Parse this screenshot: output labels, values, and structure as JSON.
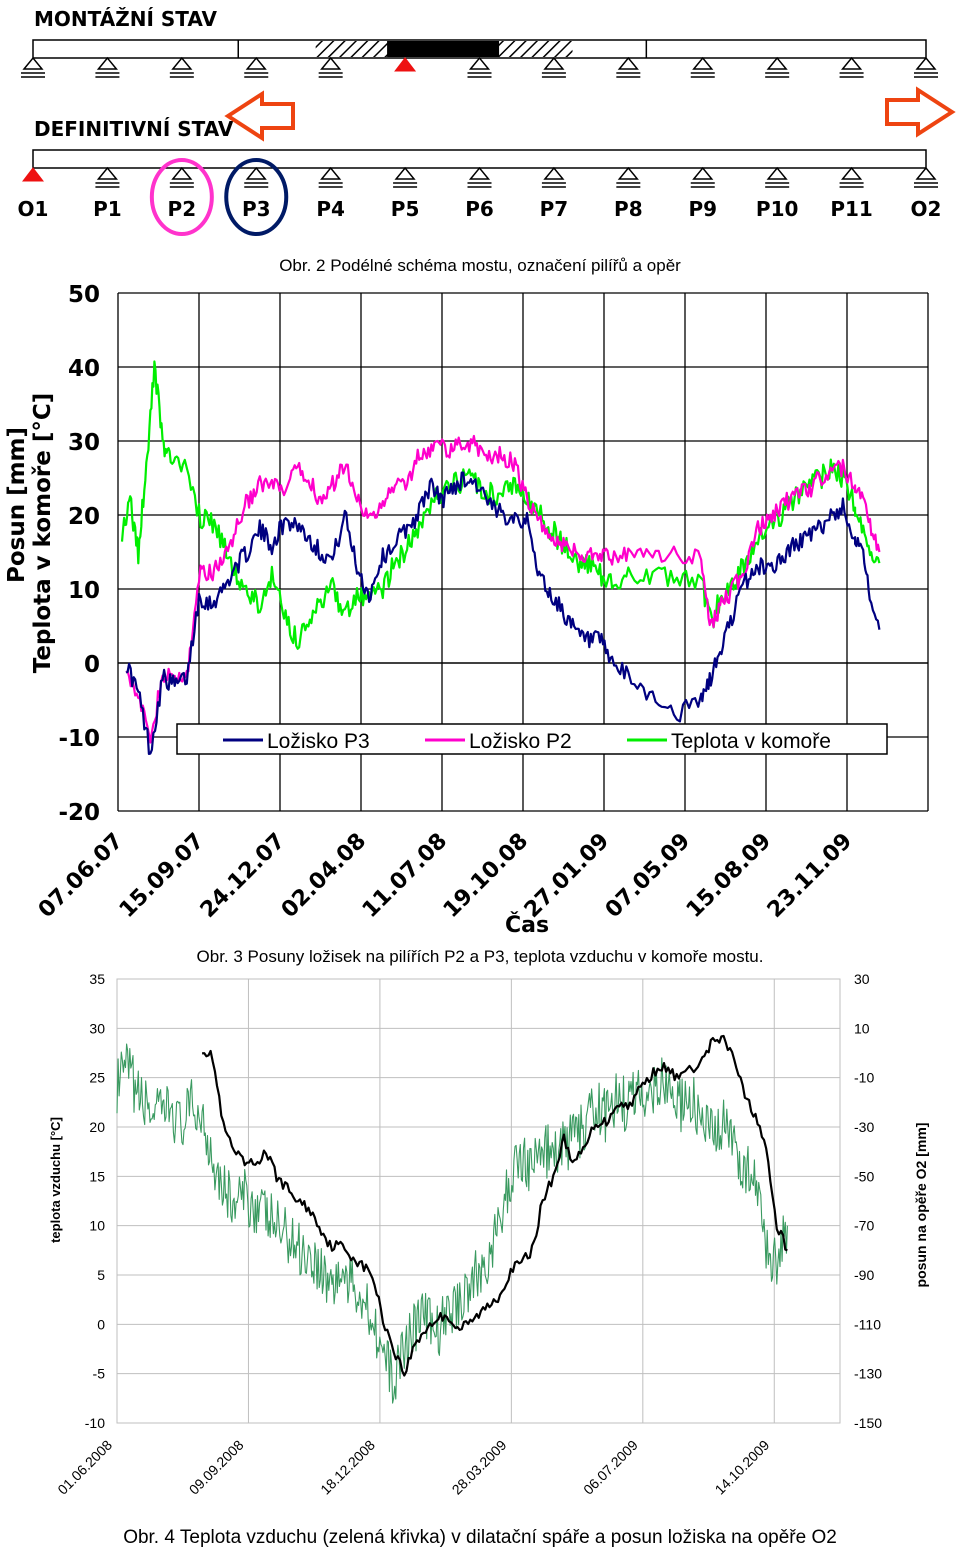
{
  "schema": {
    "montage_label": "MONTÁŽNÍ STAV",
    "definitive_label": "DEFINITIVNÍ STAV",
    "supports": [
      "O1",
      "P1",
      "P2",
      "P3",
      "P4",
      "P5",
      "P6",
      "P7",
      "P8",
      "P9",
      "P10",
      "P11",
      "O2"
    ],
    "fixed_support_montage": "P5",
    "fixed_support_definitive": "O1",
    "highlighted": [
      {
        "support": "P2",
        "color": "#ff33cc"
      },
      {
        "support": "P3",
        "color": "#001a66"
      }
    ],
    "caption": "Obr. 2  Podélné schéma mostu, označení pilířů a opěr",
    "colors": {
      "fixed": "#ee1111",
      "arrow": "#ee4411"
    }
  },
  "chart_data": [
    {
      "type": "line",
      "caption": "Obr. 3  Posuny ložisek na pilířích P2 a P3, teplota vzduchu v komoře mostu.",
      "ylabel_line1": "Posun  [mm]",
      "ylabel_line2": "Teplota v  komoře [°C]",
      "xlabel": "Čas",
      "ylim": [
        -20,
        50
      ],
      "yticks": [
        "50",
        "40",
        "30",
        "20",
        "10",
        "0",
        "-10",
        "-20"
      ],
      "xticks": [
        "07.06.07",
        "15.09.07",
        "24.12.07",
        "02.04.08",
        "11.07.08",
        "19.10.08",
        "27.01.09",
        "07.05.09",
        "15.08.09",
        "23.11.09"
      ],
      "grid": true,
      "legend_position": "bottom",
      "series": [
        {
          "name": "Ložisko P3",
          "color": "#000080",
          "x": [
            0.1,
            0.25,
            0.4,
            0.55,
            0.7,
            0.85,
            1.0,
            1.15,
            1.3,
            1.45,
            1.6,
            1.75,
            1.9,
            2.05,
            2.2,
            2.35,
            2.5,
            2.65,
            2.8,
            2.95,
            3.1,
            3.25,
            3.4,
            3.55,
            3.7,
            3.85,
            4.0,
            4.15,
            4.3,
            4.45,
            4.6,
            4.75,
            4.9,
            5.05,
            5.2,
            5.35,
            5.5,
            5.65,
            5.8,
            5.95,
            6.1,
            6.3,
            6.6,
            6.9,
            7.2,
            7.32,
            7.45,
            7.6,
            7.75,
            7.9,
            8.05,
            8.2,
            8.35,
            8.5,
            8.65,
            8.8,
            8.95,
            9.1
          ],
          "y": [
            0,
            -4,
            -12,
            -2,
            -3,
            -2,
            9,
            8,
            10,
            13,
            15,
            18,
            16,
            19,
            19,
            17,
            15,
            14,
            20,
            13,
            9,
            14,
            16,
            18,
            20,
            24,
            22,
            24,
            25,
            24,
            21,
            20,
            20,
            19,
            12,
            9,
            7,
            4,
            3,
            3,
            0,
            -2,
            -4.5,
            -7,
            -5,
            -2,
            2,
            7,
            11,
            13,
            13,
            14,
            16,
            17,
            18,
            20,
            21,
            17
          ],
          "tail": [
            [
              9.1,
              17
            ],
            [
              9.2,
              15
            ],
            [
              9.28,
              9
            ],
            [
              9.4,
              4.5
            ]
          ]
        },
        {
          "name": "Ložisko P2",
          "color": "#ff00cc",
          "x": [
            0.1,
            0.25,
            0.4,
            0.55,
            0.7,
            0.85,
            1.0,
            1.15,
            1.3,
            1.45,
            1.6,
            1.75,
            1.9,
            2.05,
            2.2,
            2.35,
            2.5,
            2.65,
            2.8,
            2.95,
            3.1,
            3.25,
            3.4,
            3.55,
            3.7,
            3.85,
            4.0,
            4.15,
            4.3,
            4.45,
            4.6,
            4.75,
            4.9,
            5.05,
            5.2,
            5.35,
            5.5,
            5.65,
            5.8,
            5.95,
            6.1,
            6.3,
            6.6,
            6.9,
            7.2,
            7.32,
            7.45,
            7.6,
            7.75,
            7.9,
            8.05,
            8.2,
            8.35,
            8.5,
            8.65,
            8.8,
            8.95,
            9.1
          ],
          "y": [
            0,
            -5,
            -10,
            -2,
            -2,
            -2,
            12,
            12,
            14,
            18,
            22,
            24,
            24,
            23,
            26,
            25,
            22,
            24,
            27,
            23,
            19,
            21,
            24,
            24,
            28,
            29,
            29,
            29,
            30,
            29,
            28,
            28,
            27,
            22,
            19,
            17,
            16,
            15,
            14.5,
            14.5,
            14.5,
            14.5,
            14.5,
            14.5,
            14.5,
            5,
            8,
            10,
            13,
            18,
            20,
            21,
            23,
            23,
            25,
            26,
            26.5,
            24
          ],
          "tail": [
            [
              9.1,
              24
            ],
            [
              9.2,
              22
            ],
            [
              9.3,
              18
            ],
            [
              9.4,
              15
            ]
          ]
        },
        {
          "name": "Teplota v komoře",
          "color": "#00ee00",
          "x": [
            0.05,
            0.15,
            0.25,
            0.35,
            0.45,
            0.55,
            0.65,
            0.8,
            1.0,
            1.15,
            1.3,
            1.45,
            1.6,
            1.75,
            1.9,
            2.05,
            2.2,
            2.35,
            2.5,
            2.65,
            2.8,
            2.95,
            3.1,
            3.25,
            3.4,
            3.55,
            3.7,
            3.85,
            4.0,
            4.15,
            4.3,
            4.45,
            4.6,
            4.75,
            4.9,
            5.05,
            5.2,
            5.35,
            5.5,
            5.65,
            5.8,
            5.95,
            6.1,
            6.3,
            6.6,
            6.9,
            7.2,
            7.32,
            7.45,
            7.6,
            7.75,
            7.9,
            8.05,
            8.2,
            8.35,
            8.5,
            8.65,
            8.8,
            8.95,
            9.1
          ],
          "y": [
            18,
            22,
            15,
            26,
            40,
            30,
            27,
            27,
            20,
            19,
            16,
            12,
            9,
            8,
            12,
            7,
            3,
            5,
            8,
            10,
            7,
            9,
            8,
            10,
            13,
            15,
            18,
            21,
            23,
            24,
            25,
            24,
            23,
            23,
            24,
            22,
            20,
            18,
            16,
            14,
            13,
            12,
            11.5,
            11.5,
            11.5,
            11.5,
            11.5,
            5.5,
            9,
            10,
            14,
            17,
            19,
            20,
            22,
            24,
            25,
            26,
            25,
            21
          ],
          "tail": [
            [
              9.1,
              21
            ],
            [
              9.2,
              18
            ],
            [
              9.3,
              14
            ],
            [
              9.4,
              13.5
            ]
          ]
        }
      ]
    },
    {
      "type": "line",
      "caption": "Obr. 4  Teplota vzduchu (zelená křivka) v dilatační spáře a posun ložiska na opěře O2",
      "ylabel_left": "teplota vzduchu [°C]",
      "ylabel_right": "posun na opěře O2 [mm]",
      "ylim_left": [
        -10,
        35
      ],
      "ylim_right": [
        -150,
        30
      ],
      "yticks_left": [
        "35",
        "30",
        "25",
        "20",
        "15",
        "10",
        "5",
        "0",
        "-5",
        "-10"
      ],
      "yticks_right": [
        "30",
        "10",
        "-10",
        "-30",
        "-50",
        "-70",
        "-90",
        "-110",
        "-130",
        "-150"
      ],
      "xticks": [
        "01.06.2008",
        "09.09.2008",
        "18.12.2008",
        "28.03.2009",
        "06.07.2009",
        "14.10.2009"
      ],
      "grid": true,
      "series": [
        {
          "name": "",
          "color": "#3a9a60",
          "axis": "left",
          "x": [
            0.0,
            0.1,
            0.2,
            0.3,
            0.4,
            0.5,
            0.6,
            0.7,
            0.8,
            0.9,
            1.0,
            1.1,
            1.2,
            1.3,
            1.4,
            1.5,
            1.6,
            1.7,
            1.8,
            1.9,
            2.0,
            2.1,
            2.2,
            2.3,
            2.4,
            2.5,
            2.6,
            2.7,
            2.8,
            2.9,
            3.0,
            3.1,
            3.2,
            3.3,
            3.4,
            3.5,
            3.6,
            3.7,
            3.8,
            3.9,
            4.0,
            4.1,
            4.2,
            4.3,
            4.4,
            4.5,
            4.6,
            4.7,
            4.8,
            4.9,
            5.0,
            5.1,
            5.2,
            5.3,
            5.4,
            5.5,
            5.6,
            5.7,
            5.8,
            5.9,
            6.0,
            6.1,
            6.2,
            6.3
          ],
          "y": [
            24,
            26,
            23,
            22,
            21,
            22,
            20,
            22,
            21,
            17,
            14,
            12,
            13,
            12,
            11,
            10,
            9,
            8,
            7,
            6,
            4,
            5,
            4,
            3,
            1,
            -3,
            -6,
            -2,
            0,
            1,
            -1,
            1,
            2,
            4,
            5,
            7,
            10,
            15,
            17,
            16,
            18,
            17,
            18,
            19,
            20,
            22,
            21,
            23,
            22,
            24,
            23,
            25,
            24,
            22,
            23,
            20,
            19,
            20,
            18,
            16,
            14,
            8,
            6,
            10
          ]
        },
        {
          "name": "",
          "color": "#000000",
          "axis": "right",
          "x": [
            0.8,
            0.9,
            1.0,
            1.1,
            1.2,
            1.3,
            1.4,
            1.5,
            1.6,
            1.7,
            1.8,
            1.9,
            2.0,
            2.1,
            2.2,
            2.3,
            2.4,
            2.5,
            2.6,
            2.7,
            2.8,
            2.9,
            3.0,
            3.1,
            3.2,
            3.3,
            3.4,
            3.5,
            3.6,
            3.7,
            3.8,
            3.9,
            4.0,
            4.1,
            4.2,
            4.3,
            4.4,
            4.5,
            4.6,
            4.7,
            4.8,
            4.9,
            5.0,
            5.1,
            5.2,
            5.3,
            5.5,
            5.6,
            5.7,
            5.8,
            5.9,
            6.0,
            6.1,
            6.2,
            6.3
          ],
          "y": [
            2,
            -2,
            -30,
            -40,
            -45,
            -45,
            -40,
            -50,
            -55,
            -60,
            -63,
            -70,
            -78,
            -78,
            -82,
            -86,
            -90,
            -108,
            -120,
            -130,
            -118,
            -112,
            -108,
            -106,
            -112,
            -110,
            -106,
            -102,
            -98,
            -88,
            -85,
            -80,
            -60,
            -50,
            -35,
            -45,
            -38,
            -28,
            -28,
            -20,
            -22,
            -15,
            -10,
            -5,
            -8,
            -10,
            -3,
            5,
            5,
            -2,
            -18,
            -25,
            -40,
            -70,
            -80
          ]
        }
      ]
    }
  ]
}
